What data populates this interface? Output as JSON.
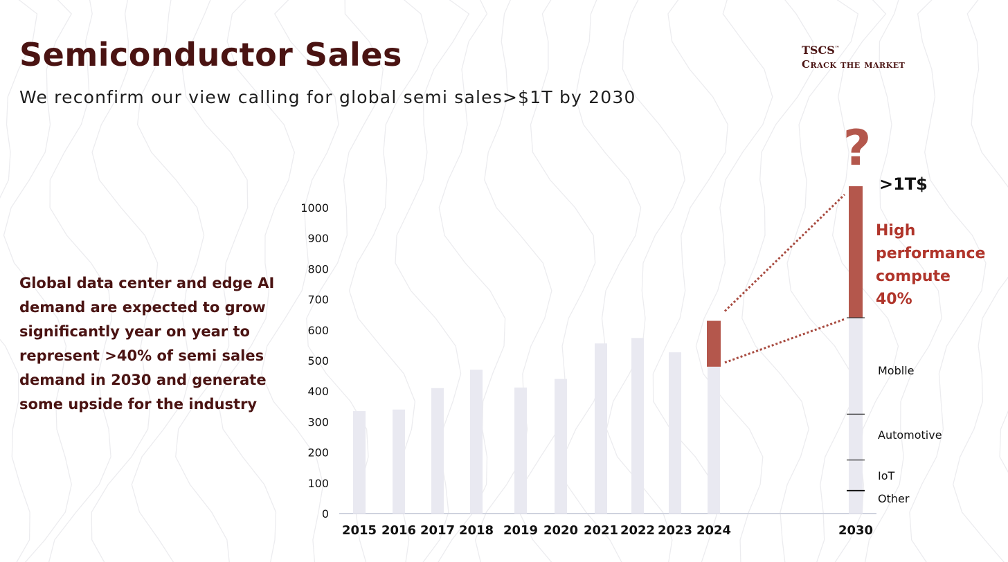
{
  "header": {
    "title": "Semiconductor Sales",
    "subtitle": "We reconfirm our view calling for global semi sales>$1T by 2030"
  },
  "brand": {
    "name": "TSCS",
    "tm": "™",
    "tagline": "Crack the market"
  },
  "commentary": "Global data center and edge AI demand are expected to grow significantly year on year to represent >40% of semi sales demand in 2030 and generate some upside for the industry",
  "colors": {
    "brand": "#4a1312",
    "accent": "#b4574c",
    "bar": "#e9e9f1",
    "axis": "#cfd2de",
    "connector": "#a84b40"
  },
  "chart_data": {
    "type": "bar",
    "title": "",
    "xlabel": "",
    "ylabel": "",
    "ylim": [
      0,
      1000
    ],
    "yticks": [
      "0",
      "100",
      "200",
      "300",
      "400",
      "500",
      "600",
      "700",
      "800",
      "900",
      "1000"
    ],
    "categories": [
      "2015",
      "2016",
      "2017",
      "2018",
      "2019",
      "2020",
      "2021",
      "2022",
      "2023",
      "2024"
    ],
    "values": [
      335,
      340,
      410,
      470,
      412,
      440,
      556,
      574,
      527,
      480
    ],
    "highlight_2024": {
      "category": "2024",
      "base": 480,
      "top": 630
    },
    "projection": {
      "category": "2030",
      "total_label": ">1T$",
      "question_mark": "?",
      "total": 1070,
      "segments": [
        {
          "name": "Other",
          "from": 0,
          "to": 75
        },
        {
          "name": "IoT",
          "from": 75,
          "to": 175
        },
        {
          "name": "Automotive",
          "from": 175,
          "to": 325
        },
        {
          "name": "Moblle",
          "from": 325,
          "to": 640
        },
        {
          "name": "High performance compute 40%",
          "from": 640,
          "to": 1070,
          "label_lines": [
            "High",
            "performance",
            "compute",
            "40%"
          ]
        }
      ]
    }
  }
}
